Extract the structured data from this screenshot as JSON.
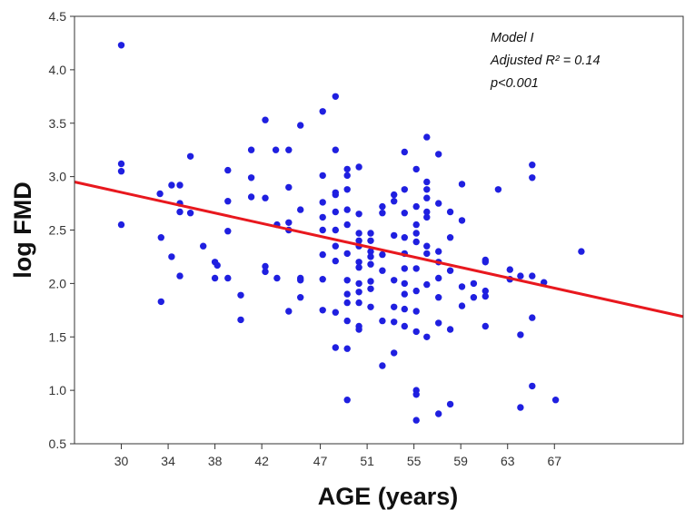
{
  "chart_data": {
    "type": "scatter",
    "xlabel": "AGE (years)",
    "ylabel": "log FMD",
    "xlim": [
      26,
      78
    ],
    "ylim": [
      0.5,
      4.5
    ],
    "x_ticks": [
      30,
      34,
      38,
      42,
      47,
      51,
      55,
      59,
      63,
      67
    ],
    "x_tick_labels": [
      "30",
      "34",
      "38",
      "42",
      "47",
      "51",
      "55",
      "59",
      "63",
      "67"
    ],
    "y_ticks": [
      0.5,
      1.0,
      1.5,
      2.0,
      2.5,
      3.0,
      3.5,
      4.0,
      4.5
    ],
    "y_tick_labels": [
      "0.5",
      "1.0",
      "1.5",
      "2.0",
      "2.5",
      "3.0",
      "3.5",
      "4.0",
      "4.5"
    ],
    "grid": false,
    "annotation": [
      "Model I",
      "Adjusted R² = 0.14",
      "p<0.001"
    ],
    "point_color": "#1f1fe0",
    "line_color": "#e8181e",
    "regression_line": {
      "x": [
        26,
        78
      ],
      "y": [
        2.95,
        1.69
      ]
    },
    "points": [
      [
        30.0,
        4.23
      ],
      [
        30.0,
        3.12
      ],
      [
        30.0,
        3.05
      ],
      [
        30.0,
        2.55
      ],
      [
        33.3,
        2.84
      ],
      [
        33.4,
        2.43
      ],
      [
        33.4,
        1.83
      ],
      [
        34.3,
        2.92
      ],
      [
        34.3,
        2.25
      ],
      [
        35.0,
        2.92
      ],
      [
        35.0,
        2.75
      ],
      [
        35.0,
        2.67
      ],
      [
        35.0,
        2.07
      ],
      [
        35.9,
        3.19
      ],
      [
        35.9,
        2.66
      ],
      [
        37.0,
        2.35
      ],
      [
        38.0,
        2.2
      ],
      [
        38.0,
        2.05
      ],
      [
        38.2,
        2.17
      ],
      [
        39.1,
        3.06
      ],
      [
        39.1,
        2.77
      ],
      [
        39.1,
        2.49
      ],
      [
        39.1,
        2.05
      ],
      [
        40.2,
        1.89
      ],
      [
        40.2,
        1.66
      ],
      [
        41.1,
        3.25
      ],
      [
        41.1,
        2.99
      ],
      [
        41.1,
        2.81
      ],
      [
        42.3,
        3.53
      ],
      [
        42.3,
        2.8
      ],
      [
        42.3,
        2.16
      ],
      [
        42.3,
        2.11
      ],
      [
        43.2,
        3.25
      ],
      [
        43.3,
        2.55
      ],
      [
        43.3,
        2.05
      ],
      [
        44.3,
        3.25
      ],
      [
        44.3,
        2.9
      ],
      [
        44.3,
        2.57
      ],
      [
        44.3,
        2.5
      ],
      [
        44.3,
        1.74
      ],
      [
        45.3,
        3.48
      ],
      [
        45.3,
        2.69
      ],
      [
        45.3,
        2.05
      ],
      [
        45.3,
        2.03
      ],
      [
        45.3,
        1.87
      ],
      [
        47.2,
        3.61
      ],
      [
        47.2,
        3.01
      ],
      [
        47.2,
        2.76
      ],
      [
        47.2,
        2.62
      ],
      [
        47.2,
        2.5
      ],
      [
        47.2,
        2.27
      ],
      [
        47.2,
        2.04
      ],
      [
        47.2,
        1.75
      ],
      [
        48.3,
        3.75
      ],
      [
        48.3,
        3.25
      ],
      [
        48.3,
        2.85
      ],
      [
        48.3,
        2.83
      ],
      [
        48.3,
        2.67
      ],
      [
        48.3,
        2.5
      ],
      [
        48.3,
        2.35
      ],
      [
        48.3,
        2.21
      ],
      [
        48.3,
        1.73
      ],
      [
        48.3,
        1.4
      ],
      [
        49.3,
        3.07
      ],
      [
        49.3,
        3.01
      ],
      [
        49.3,
        2.88
      ],
      [
        49.3,
        2.69
      ],
      [
        49.3,
        2.55
      ],
      [
        49.3,
        2.28
      ],
      [
        49.3,
        2.03
      ],
      [
        49.3,
        1.9
      ],
      [
        49.3,
        1.82
      ],
      [
        49.3,
        1.65
      ],
      [
        49.3,
        1.39
      ],
      [
        49.3,
        0.91
      ],
      [
        50.3,
        3.09
      ],
      [
        50.3,
        2.65
      ],
      [
        50.3,
        2.47
      ],
      [
        50.3,
        2.4
      ],
      [
        50.3,
        2.35
      ],
      [
        50.3,
        2.2
      ],
      [
        50.3,
        2.15
      ],
      [
        50.3,
        2.0
      ],
      [
        50.3,
        1.92
      ],
      [
        50.3,
        1.82
      ],
      [
        50.3,
        1.6
      ],
      [
        50.3,
        1.57
      ],
      [
        51.3,
        2.47
      ],
      [
        51.3,
        2.4
      ],
      [
        51.3,
        2.3
      ],
      [
        51.3,
        2.25
      ],
      [
        51.3,
        2.18
      ],
      [
        51.3,
        2.02
      ],
      [
        51.3,
        1.95
      ],
      [
        51.3,
        1.78
      ],
      [
        52.3,
        2.72
      ],
      [
        52.3,
        2.66
      ],
      [
        52.3,
        2.27
      ],
      [
        52.3,
        2.12
      ],
      [
        52.3,
        1.65
      ],
      [
        52.3,
        1.23
      ],
      [
        53.3,
        2.83
      ],
      [
        53.3,
        2.77
      ],
      [
        53.3,
        2.45
      ],
      [
        53.3,
        2.03
      ],
      [
        53.3,
        1.78
      ],
      [
        53.3,
        1.64
      ],
      [
        53.3,
        1.35
      ],
      [
        54.2,
        3.23
      ],
      [
        54.2,
        2.88
      ],
      [
        54.2,
        2.66
      ],
      [
        54.2,
        2.43
      ],
      [
        54.2,
        2.28
      ],
      [
        54.2,
        2.14
      ],
      [
        54.2,
        2.0
      ],
      [
        54.2,
        1.9
      ],
      [
        54.2,
        1.76
      ],
      [
        54.2,
        1.6
      ],
      [
        55.2,
        3.07
      ],
      [
        55.2,
        2.72
      ],
      [
        55.2,
        2.55
      ],
      [
        55.2,
        2.47
      ],
      [
        55.2,
        2.39
      ],
      [
        55.2,
        2.14
      ],
      [
        55.2,
        1.93
      ],
      [
        55.2,
        1.74
      ],
      [
        55.2,
        1.55
      ],
      [
        55.2,
        1.0
      ],
      [
        55.2,
        0.96
      ],
      [
        55.2,
        0.72
      ],
      [
        56.1,
        3.37
      ],
      [
        56.1,
        2.95
      ],
      [
        56.1,
        2.88
      ],
      [
        56.1,
        2.8
      ],
      [
        56.1,
        2.67
      ],
      [
        56.1,
        2.62
      ],
      [
        56.1,
        2.35
      ],
      [
        56.1,
        2.28
      ],
      [
        56.1,
        1.99
      ],
      [
        56.1,
        1.5
      ],
      [
        57.1,
        3.21
      ],
      [
        57.1,
        2.75
      ],
      [
        57.1,
        2.3
      ],
      [
        57.1,
        2.2
      ],
      [
        57.1,
        2.05
      ],
      [
        57.1,
        1.87
      ],
      [
        57.1,
        1.63
      ],
      [
        57.1,
        0.78
      ],
      [
        58.1,
        2.67
      ],
      [
        58.1,
        2.43
      ],
      [
        58.1,
        2.12
      ],
      [
        58.1,
        1.57
      ],
      [
        58.1,
        0.87
      ],
      [
        59.1,
        2.93
      ],
      [
        59.1,
        2.59
      ],
      [
        59.1,
        1.97
      ],
      [
        59.1,
        1.79
      ],
      [
        60.1,
        2.0
      ],
      [
        60.1,
        1.87
      ],
      [
        61.1,
        2.22
      ],
      [
        61.1,
        2.2
      ],
      [
        61.1,
        1.93
      ],
      [
        61.1,
        1.88
      ],
      [
        61.1,
        1.6
      ],
      [
        62.2,
        2.88
      ],
      [
        63.2,
        2.13
      ],
      [
        63.2,
        2.04
      ],
      [
        64.1,
        2.07
      ],
      [
        64.1,
        1.52
      ],
      [
        64.1,
        0.84
      ],
      [
        65.1,
        3.11
      ],
      [
        65.1,
        2.99
      ],
      [
        65.1,
        2.07
      ],
      [
        65.1,
        1.68
      ],
      [
        65.1,
        1.04
      ],
      [
        66.1,
        2.01
      ],
      [
        67.1,
        0.91
      ],
      [
        69.3,
        2.3
      ]
    ]
  }
}
